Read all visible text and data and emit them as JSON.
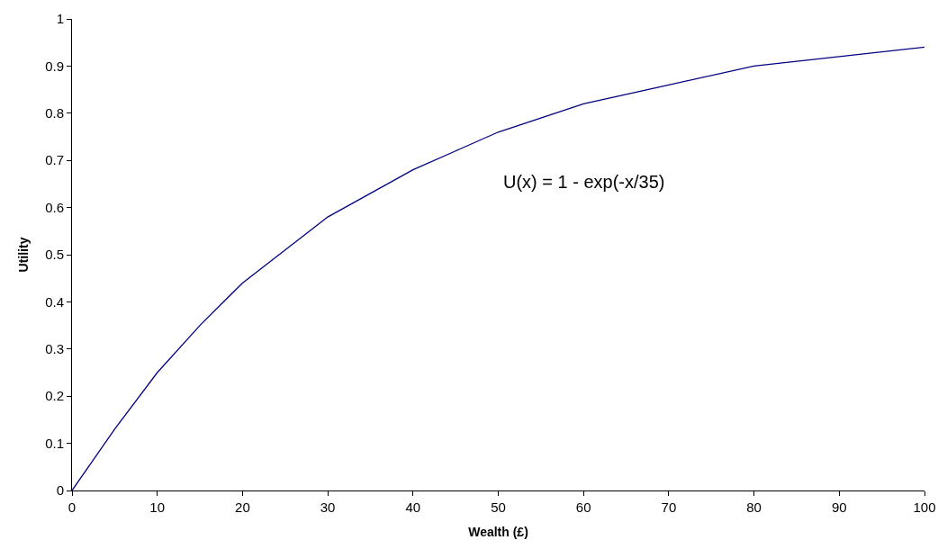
{
  "chart_data": {
    "type": "line",
    "xlabel": "Wealth (£)",
    "ylabel": "Utility",
    "x": [
      0,
      5,
      10,
      15,
      20,
      25,
      30,
      35,
      40,
      45,
      50,
      55,
      60,
      70,
      80,
      90,
      100
    ],
    "series": [
      {
        "color": "#000080",
        "values": [
          0,
          0.13,
          0.25,
          0.35,
          0.44,
          0.51,
          0.58,
          0.63,
          0.68,
          0.72,
          0.76,
          0.79,
          0.82,
          0.86,
          0.9,
          0.92,
          0.94
        ]
      }
    ],
    "xlim": [
      0,
      100
    ],
    "xticks": [
      0,
      10,
      20,
      30,
      40,
      50,
      60,
      70,
      80,
      90,
      100
    ],
    "ylim": [
      0,
      1
    ],
    "yticks": [
      0,
      0.1,
      0.2,
      0.3,
      0.4,
      0.5,
      0.6,
      0.7,
      0.8,
      0.9,
      1
    ],
    "annotations": [
      "U(x) = 1 - exp(-x/35)"
    ],
    "marker": "none",
    "line_style": "solid"
  }
}
